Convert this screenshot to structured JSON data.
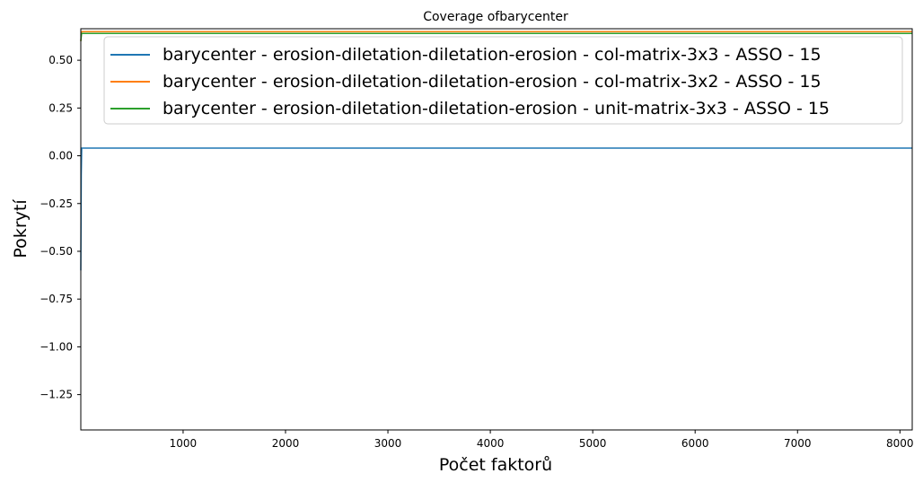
{
  "chart_data": {
    "type": "line",
    "title": "Coverage ofbarycenter",
    "xlabel": "Počet faktorů",
    "ylabel": "Pokrytí",
    "xlim": [
      1,
      8120
    ],
    "ylim": [
      -1.435,
      0.665
    ],
    "xticks": [
      1000,
      2000,
      3000,
      4000,
      5000,
      6000,
      7000,
      8000
    ],
    "yticks": [
      0.5,
      0.25,
      0.0,
      -0.25,
      -0.5,
      -0.75,
      -1.0,
      -1.25
    ],
    "ytick_labels": [
      "0.50",
      "0.25",
      "0.00",
      "−0.25",
      "−0.50",
      "−0.75",
      "−1.00",
      "−1.25"
    ],
    "xtick_labels": [
      "1000",
      "2000",
      "3000",
      "4000",
      "5000",
      "6000",
      "7000",
      "8000"
    ],
    "legend_position": "top-right",
    "grid": false,
    "series": [
      {
        "name": "barycenter - erosion-diletation-diletation-erosion - col-matrix-3x3 - ASSO - 15",
        "color": "#1f77b4",
        "x": [
          1,
          5,
          10,
          30,
          8120
        ],
        "y": [
          -0.6,
          -0.1,
          0.04,
          0.04,
          0.04
        ]
      },
      {
        "name": "barycenter - erosion-diletation-diletation-erosion - col-matrix-3x2 - ASSO - 15",
        "color": "#ff7f0e",
        "x": [
          1,
          8,
          8120
        ],
        "y": [
          0.6,
          0.65,
          0.65
        ]
      },
      {
        "name": "barycenter - erosion-diletation-diletation-erosion - unit-matrix-3x3 - ASSO - 15",
        "color": "#2ca02c",
        "x": [
          1,
          8,
          8120
        ],
        "y": [
          0.6,
          0.64,
          0.64
        ]
      }
    ]
  }
}
